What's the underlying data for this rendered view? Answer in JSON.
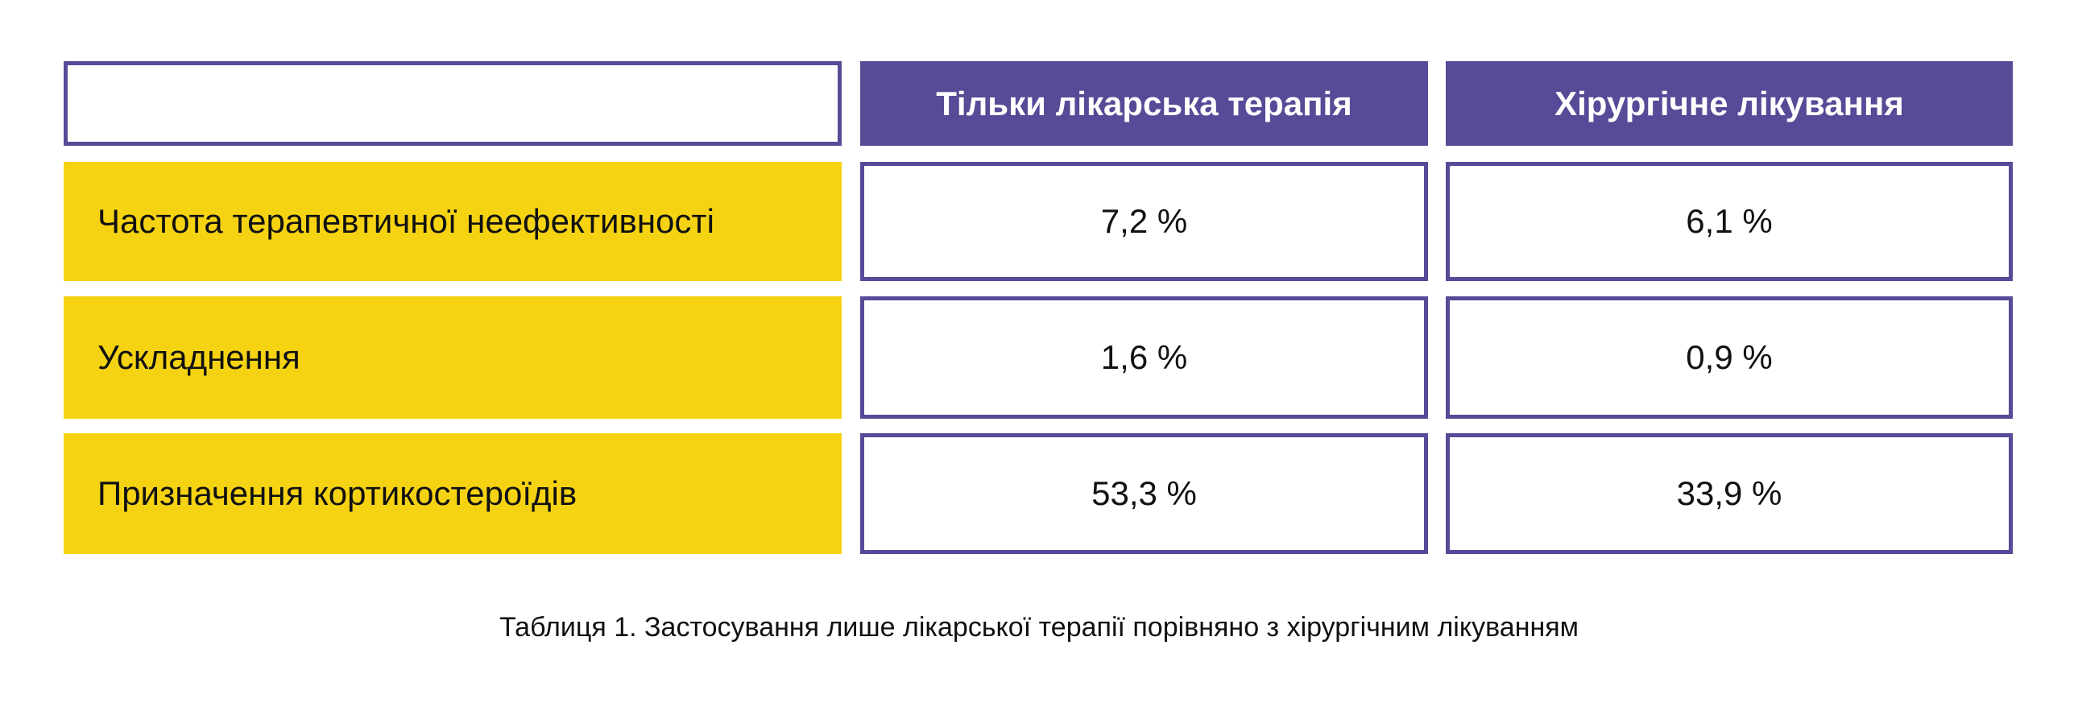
{
  "table": {
    "columns": [
      "",
      "Тільки лікарська терапія",
      "Хірургічне лікування"
    ],
    "rows": [
      {
        "label": "Частота терапевтичної неефективності",
        "values": [
          "7,2 %",
          "6,1 %"
        ]
      },
      {
        "label": "Ускладнення",
        "values": [
          "1,6 %",
          "0,9 %"
        ]
      },
      {
        "label": "Призначення кортикостероїдів",
        "values": [
          "53,3 %",
          "33,9 %"
        ]
      }
    ]
  },
  "caption": "Таблиця 1. Застосування лише лікарської терапії порівняно з хірургічним лікуванням",
  "colors": {
    "header": "#574a97",
    "label_bg": "#f6d312"
  }
}
